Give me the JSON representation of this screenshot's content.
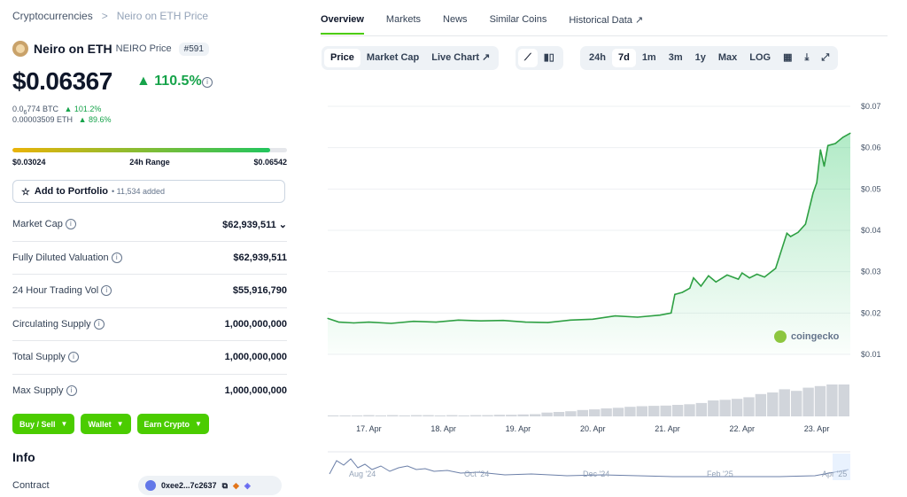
{
  "breadcrumb": {
    "root": "Cryptocurrencies",
    "separator": ">",
    "current": "Neiro on ETH Price"
  },
  "coin": {
    "name": "Neiro on ETH",
    "symbol_label": "NEIRO Price",
    "rank": "#591"
  },
  "price": {
    "value": "$0.06367",
    "change": "110.5%",
    "change_dir": "up"
  },
  "btc": {
    "value_prefix": "0.0",
    "value_sub": "6",
    "value_suffix": "774 BTC",
    "change": "101.2%"
  },
  "eth": {
    "value": "0.00003509 ETH",
    "change": "89.6%"
  },
  "range": {
    "low": "$0.03024",
    "label": "24h Range",
    "high": "$0.06542",
    "position_fraction": 0.94
  },
  "portfolio": {
    "label": "Add to Portfolio",
    "added": "11,534 added"
  },
  "stats": [
    {
      "label": "Market Cap",
      "value": "$62,939,511"
    },
    {
      "label": "Fully Diluted Valuation",
      "value": "$62,939,511"
    },
    {
      "label": "24 Hour Trading Vol",
      "value": "$55,916,790"
    },
    {
      "label": "Circulating Supply",
      "value": "1,000,000,000"
    },
    {
      "label": "Total Supply",
      "value": "1,000,000,000"
    },
    {
      "label": "Max Supply",
      "value": "1,000,000,000"
    }
  ],
  "buttons": {
    "buy_sell": "Buy / Sell",
    "wallet": "Wallet",
    "earn": "Earn Crypto"
  },
  "info": {
    "heading": "Info",
    "contract_label": "Contract",
    "contract_value": "0xee2...7c2637"
  },
  "tabs": [
    "Overview",
    "Markets",
    "News",
    "Similar Coins",
    "Historical Data"
  ],
  "chart_toolbar": {
    "types": [
      "Price",
      "Market Cap",
      "Live Chart"
    ],
    "ranges": [
      "24h",
      "7d",
      "1m",
      "3m",
      "1y",
      "Max",
      "LOG"
    ],
    "active_type": "Price",
    "active_range": "7d"
  },
  "watermark": "coingecko",
  "colors": {
    "accent": "#4bcc00",
    "up": "#16a34a",
    "line": "#2ea043"
  },
  "chart_data": {
    "type": "area",
    "x_labels": [
      "17. Apr",
      "18. Apr",
      "19. Apr",
      "20. Apr",
      "21. Apr",
      "22. Apr",
      "23. Apr"
    ],
    "y_ticks": [
      "$0.07",
      "$0.06",
      "$0.05",
      "$0.04",
      "$0.03",
      "$0.02",
      "$0.01"
    ],
    "y_tick_values": [
      0.07,
      0.06,
      0.05,
      0.04,
      0.03,
      0.02,
      0.01
    ],
    "ylim": [
      0.01,
      0.07
    ],
    "x_range": [
      16.45,
      23.45
    ],
    "x": [
      16.45,
      16.6,
      16.8,
      17.0,
      17.3,
      17.6,
      17.9,
      18.2,
      18.5,
      18.8,
      19.1,
      19.4,
      19.7,
      20.0,
      20.3,
      20.6,
      20.9,
      21.05,
      21.1,
      21.2,
      21.3,
      21.35,
      21.45,
      21.55,
      21.65,
      21.8,
      21.95,
      22.0,
      22.1,
      22.2,
      22.3,
      22.45,
      22.6,
      22.65,
      22.75,
      22.85,
      22.95,
      23.0,
      23.05,
      23.1,
      23.15,
      23.25,
      23.35,
      23.45
    ],
    "values": [
      0.0187,
      0.0178,
      0.0176,
      0.0178,
      0.0175,
      0.018,
      0.0178,
      0.0183,
      0.0181,
      0.0182,
      0.0178,
      0.0177,
      0.0183,
      0.0185,
      0.0193,
      0.019,
      0.0195,
      0.02,
      0.0245,
      0.025,
      0.026,
      0.0285,
      0.0265,
      0.029,
      0.0275,
      0.0292,
      0.0282,
      0.0297,
      0.0285,
      0.0294,
      0.0287,
      0.0308,
      0.0393,
      0.0385,
      0.0395,
      0.0415,
      0.049,
      0.0515,
      0.0595,
      0.0555,
      0.0605,
      0.061,
      0.0625,
      0.0635
    ],
    "volume": [
      0.03,
      0.03,
      0.03,
      0.04,
      0.03,
      0.04,
      0.03,
      0.04,
      0.04,
      0.03,
      0.04,
      0.03,
      0.04,
      0.04,
      0.05,
      0.05,
      0.06,
      0.07,
      0.12,
      0.14,
      0.16,
      0.2,
      0.22,
      0.25,
      0.27,
      0.3,
      0.32,
      0.33,
      0.34,
      0.36,
      0.38,
      0.42,
      0.5,
      0.52,
      0.55,
      0.6,
      0.7,
      0.75,
      0.85,
      0.8,
      0.9,
      0.95,
      1.0,
      1.0
    ],
    "navigator": {
      "labels": [
        "Aug '24",
        "Oct '24",
        "Dec '24",
        "Feb '25",
        "Apr '25"
      ]
    },
    "grid": true
  }
}
